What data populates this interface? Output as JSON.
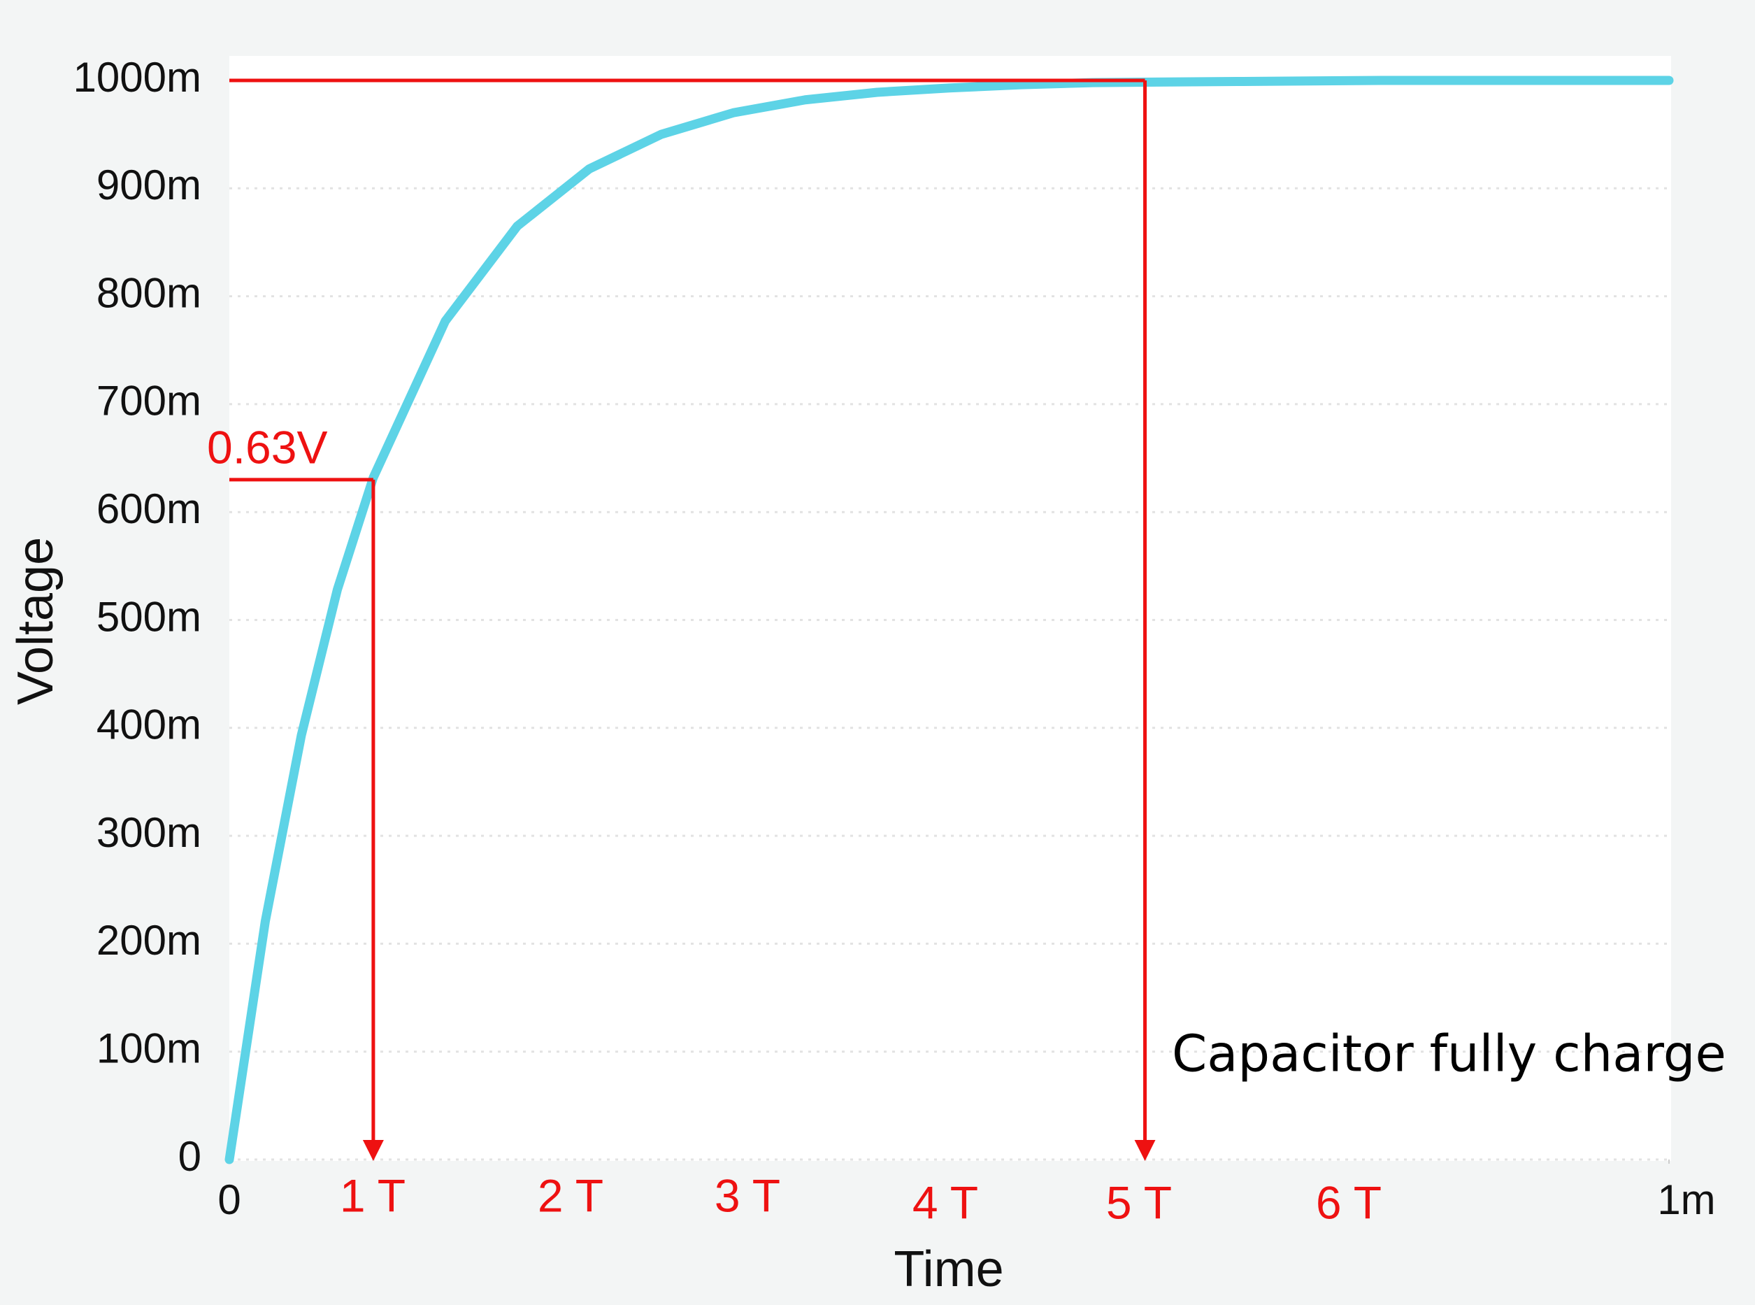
{
  "chart_data": {
    "type": "line",
    "x_label": "Time",
    "y_label": "Voltage",
    "x": [
      0,
      2.5e-05,
      5e-05,
      7.5e-05,
      0.0001,
      0.00015,
      0.0002,
      0.00025,
      0.0003,
      0.00035,
      0.0004,
      0.00045,
      0.0005,
      0.00055,
      0.0006,
      0.0007,
      0.0008,
      0.0009,
      0.001
    ],
    "series": [
      {
        "name": "Voltage",
        "color": "#5dd3e6",
        "values": [
          0,
          0.221,
          0.393,
          0.528,
          0.632,
          0.777,
          0.865,
          0.918,
          0.95,
          0.97,
          0.982,
          0.989,
          0.993,
          0.996,
          0.998,
          0.999,
          1.0,
          1.0,
          1.0
        ]
      }
    ],
    "xlim": [
      0,
      0.001
    ],
    "ylim": [
      0,
      1
    ],
    "xticks": [
      0,
      {
        "value": 0.001,
        "label": "1m"
      }
    ],
    "yticks": [
      0,
      {
        "value": 0.1,
        "label": "100m"
      },
      {
        "value": 0.2,
        "label": "200m"
      },
      {
        "value": 0.3,
        "label": "300m"
      },
      {
        "value": 0.4,
        "label": "400m"
      },
      {
        "value": 0.5,
        "label": "500m"
      },
      {
        "value": 0.6,
        "label": "600m"
      },
      {
        "value": 0.7,
        "label": "700m"
      },
      {
        "value": 0.8,
        "label": "800m"
      },
      {
        "value": 0.9,
        "label": "900m"
      },
      {
        "value": 1,
        "label": "1000m"
      }
    ],
    "grid": true,
    "guides": [
      {
        "x": 0.0001,
        "y": 0.63
      },
      {
        "x": 0.000636,
        "y": 1
      }
    ],
    "guide_color": "#ee1111",
    "annotations": [
      "0.63V",
      "1 T",
      "2 T",
      "3 T",
      "4 T",
      "5 T",
      "6 T",
      "Capacitor fully charge"
    ]
  }
}
